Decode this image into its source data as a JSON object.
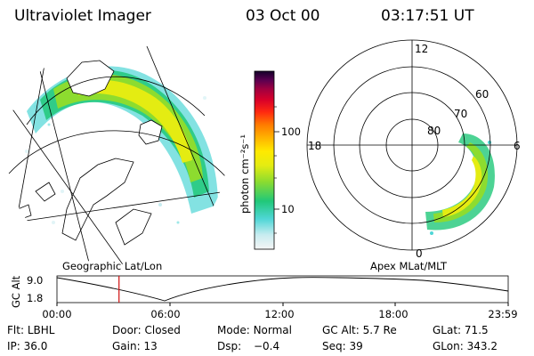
{
  "header": {
    "title": "Ultraviolet Imager",
    "date": "03 Oct 00",
    "time": "03:17:51 UT"
  },
  "colorbar": {
    "unit": "photon cm⁻²s⁻¹",
    "ticks": [
      "100",
      "10"
    ],
    "colors": [
      "#f5f5f5",
      "#c8ecf0",
      "#4fd6d6",
      "#21c879",
      "#8ddc2f",
      "#e4ec12",
      "#ffea00",
      "#ffb000",
      "#ff7a00",
      "#ff2a10",
      "#d8002a",
      "#a00040",
      "#5a0050",
      "#14002a"
    ]
  },
  "left_map": {
    "label": "Geographic Lat/Lon",
    "land_color": "#ffffff",
    "aurora_colors": [
      "#8ddc2f",
      "#e4ec12",
      "#4fd6d6",
      "#21c879"
    ]
  },
  "right_map": {
    "label": "Apex MLat/MLT",
    "lat_labels": [
      "80",
      "70",
      "60"
    ],
    "mlt_labels": {
      "top": "12",
      "right": "6",
      "left": "18",
      "bottom": "0"
    }
  },
  "altitude_plot": {
    "ylabel": "GC Alt",
    "yticks": [
      "9.0",
      "1.8"
    ],
    "xticks": [
      "00:00",
      "06:00",
      "12:00",
      "18:00",
      "23:59"
    ],
    "marker_time_hours": 3.3,
    "marker_color": "#d01010"
  },
  "info": {
    "row1": [
      {
        "label": "Flt:",
        "value": "LBHL"
      },
      {
        "label": "Door:",
        "value": "Closed"
      },
      {
        "label": "Mode:",
        "value": "Normal"
      },
      {
        "label": "GC Alt:",
        "value": "5.7 Re"
      },
      {
        "label": "GLat:",
        "value": "71.5"
      }
    ],
    "row2": [
      {
        "label": "IP:",
        "value": "36.0"
      },
      {
        "label": "Gain:",
        "value": "13"
      },
      {
        "label": "Dsp:",
        "value": "−0.4"
      },
      {
        "label": "Seq:",
        "value": "39"
      },
      {
        "label": "GLon:",
        "value": "343.2"
      }
    ]
  }
}
